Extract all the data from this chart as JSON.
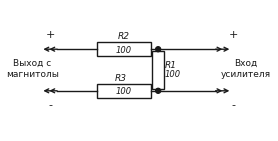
{
  "bg_color": "#ffffff",
  "line_color": "#1a1a1a",
  "resistor_fill": "#ffffff",
  "text_color": "#1a1a1a",
  "left_label_top": "+",
  "left_label_mid": "Выход с\nмагнитолы",
  "left_label_bot": "-",
  "right_label_top": "+",
  "right_label_mid": "Вход\nусилителя",
  "right_label_bot": "-",
  "R2_label": "R2",
  "R2_val": "100",
  "R3_label": "R3",
  "R3_val": "100",
  "R1_label": "R1",
  "R1_val": "100"
}
